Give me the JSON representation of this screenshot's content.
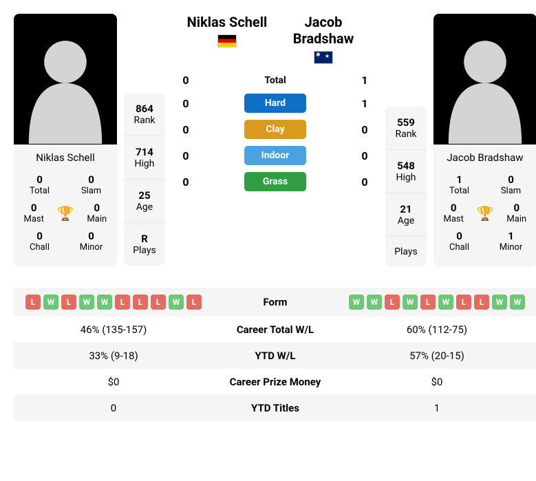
{
  "player1": {
    "name": "Niklas Schell",
    "flag": "de",
    "rank": "864",
    "high": "714",
    "age": "25",
    "plays": "R",
    "total": "0",
    "slam": "0",
    "mast": "0",
    "main": "0",
    "chall": "0",
    "minor": "0"
  },
  "player2": {
    "name": "Jacob Bradshaw",
    "flag": "au",
    "rank": "559",
    "high": "548",
    "age": "21",
    "plays": "",
    "total": "1",
    "slam": "0",
    "mast": "0",
    "main": "0",
    "chall": "0",
    "minor": "1"
  },
  "labels": {
    "rank": "Rank",
    "high": "High",
    "age": "Age",
    "plays": "Plays",
    "total": "Total",
    "slam": "Slam",
    "mast": "Mast",
    "main": "Main",
    "chall": "Chall",
    "minor": "Minor"
  },
  "h2h": {
    "total": {
      "p1": "0",
      "label": "Total",
      "p2": "1"
    },
    "hard": {
      "p1": "0",
      "label": "Hard",
      "p2": "1",
      "color": "#0d6fc5"
    },
    "clay": {
      "p1": "0",
      "label": "Clay",
      "p2": "0",
      "color": "#d99a1e"
    },
    "indoor": {
      "p1": "0",
      "label": "Indoor",
      "p2": "0",
      "color": "#4aa3e0"
    },
    "grass": {
      "p1": "0",
      "label": "Grass",
      "p2": "0",
      "color": "#2e9e41"
    }
  },
  "form": {
    "label": "Form",
    "p1": [
      "L",
      "W",
      "L",
      "W",
      "W",
      "L",
      "L",
      "L",
      "W",
      "L"
    ],
    "p2": [
      "W",
      "W",
      "L",
      "W",
      "L",
      "W",
      "L",
      "L",
      "W",
      "W"
    ]
  },
  "table": [
    {
      "p1": "46% (135-157)",
      "label": "Career Total W/L",
      "p2": "60% (112-75)"
    },
    {
      "p1": "33% (9-18)",
      "label": "YTD W/L",
      "p2": "57% (20-15)"
    },
    {
      "p1": "$0",
      "label": "Career Prize Money",
      "p2": "$0"
    },
    {
      "p1": "0",
      "label": "YTD Titles",
      "p2": "1"
    }
  ]
}
